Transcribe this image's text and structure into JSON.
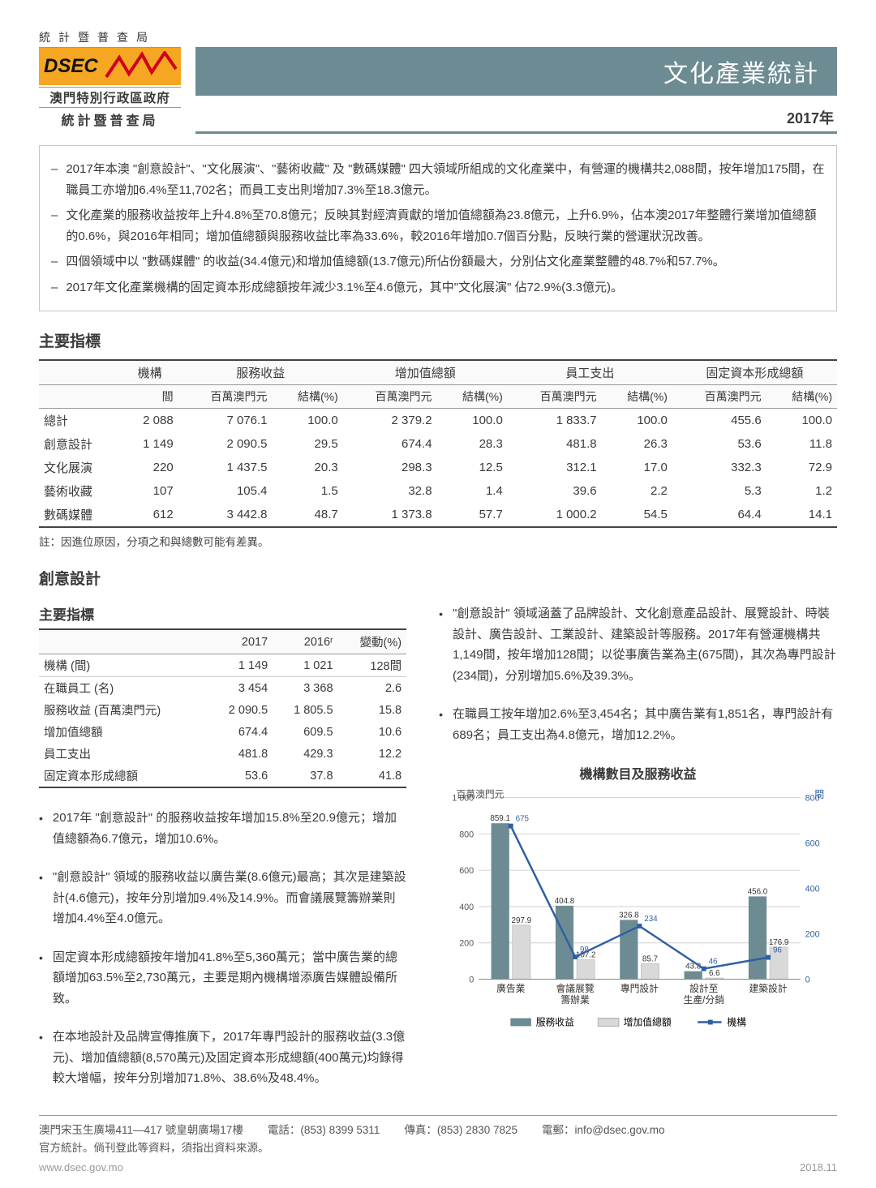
{
  "logo": {
    "top_text": "統計暨普查局",
    "brand": "DSEC",
    "sub1": "澳門特別行政區政府",
    "sub2": "統計暨普查局",
    "zigzag_color": "#d0021b"
  },
  "title_banner": "文化產業統計",
  "year_label": "2017年",
  "summary_bullets": [
    "2017年本澳 \"創意設計\"、\"文化展演\"、\"藝術收藏\" 及 \"數碼媒體\" 四大領域所組成的文化產業中，有營運的機構共2,088間，按年增加175間，在職員工亦增加6.4%至11,702名；而員工支出則增加7.3%至18.3億元。",
    "文化產業的服務收益按年上升4.8%至70.8億元；反映其對經濟貢獻的增加值總額為23.8億元，上升6.9%，佔本澳2017年整體行業增加值總額的0.6%，與2016年相同；增加值總額與服務收益比率為33.6%，較2016年增加0.7個百分點，反映行業的營運狀況改善。",
    "四個領域中以 \"數碼媒體\" 的收益(34.4億元)和增加值總額(13.7億元)所佔份額最大，分別佔文化產業整體的48.7%和57.7%。",
    "2017年文化產業機構的固定資本形成總額按年減少3.1%至4.6億元，其中\"文化展演\" 佔72.9%(3.3億元)。"
  ],
  "key_heading": "主要指標",
  "key_table": {
    "head1": [
      "",
      "機構",
      "服務收益",
      "增加值總額",
      "員工支出",
      "固定資本形成總額"
    ],
    "head2": [
      "",
      "間",
      "百萬澳門元",
      "結構(%)",
      "百萬澳門元",
      "結構(%)",
      "百萬澳門元",
      "結構(%)",
      "百萬澳門元",
      "結構(%)"
    ],
    "rows": [
      [
        "總計",
        "2 088",
        "7 076.1",
        "100.0",
        "2 379.2",
        "100.0",
        "1 833.7",
        "100.0",
        "455.6",
        "100.0"
      ],
      [
        "創意設計",
        "1 149",
        "2 090.5",
        "29.5",
        "674.4",
        "28.3",
        "481.8",
        "26.3",
        "53.6",
        "11.8"
      ],
      [
        "文化展演",
        "220",
        "1 437.5",
        "20.3",
        "298.3",
        "12.5",
        "312.1",
        "17.0",
        "332.3",
        "72.9"
      ],
      [
        "藝術收藏",
        "107",
        "105.4",
        "1.5",
        "32.8",
        "1.4",
        "39.6",
        "2.2",
        "5.3",
        "1.2"
      ],
      [
        "數碼媒體",
        "612",
        "3 442.8",
        "48.7",
        "1 373.8",
        "57.7",
        "1 000.2",
        "54.5",
        "64.4",
        "14.1"
      ]
    ],
    "note": "註：因進位原因，分項之和與總數可能有差異。"
  },
  "creative_heading": "創意設計",
  "creative_sub_heading": "主要指標",
  "creative_table": {
    "head": [
      "",
      "2017",
      "2016ʳ",
      "變動(%)"
    ],
    "rows": [
      [
        "機構 (間)",
        "1 149",
        "1 021",
        "128間"
      ],
      [
        "在職員工 (名)",
        "3 454",
        "3 368",
        "2.6"
      ],
      [
        "服務收益 (百萬澳門元)",
        "2 090.5",
        "1 805.5",
        "15.8"
      ],
      [
        "增加值總額",
        "674.4",
        "609.5",
        "10.6"
      ],
      [
        "員工支出",
        "481.8",
        "429.3",
        "12.2"
      ],
      [
        "固定資本形成總額",
        "53.6",
        "37.8",
        "41.8"
      ]
    ]
  },
  "creative_right_bullets": [
    "\"創意設計\" 領域涵蓋了品牌設計、文化創意產品設計、展覽設計、時裝設計、廣告設計、工業設計、建築設計等服務。2017年有營運機構共1,149間，按年增加128間；以從事廣告業為主(675間)，其次為專門設計(234間)，分別增加5.6%及39.3%。",
    "在職員工按年增加2.6%至3,454名；其中廣告業有1,851名，專門設計有689名；員工支出為4.8億元，增加12.2%。"
  ],
  "left_bullets": [
    "2017年 \"創意設計\" 的服務收益按年增加15.8%至20.9億元；增加值總額為6.7億元，增加10.6%。",
    "\"創意設計\" 領域的服務收益以廣告業(8.6億元)最高；其次是建築設計(4.6億元)，按年分別增加9.4%及14.9%。而會議展覽籌辦業則增加4.4%至4.0億元。",
    "固定資本形成總額按年增加41.8%至5,360萬元；當中廣告業的總額增加63.5%至2,730萬元，主要是期內機構增添廣告媒體設備所致。",
    "在本地設計及品牌宣傳推廣下，2017年專門設計的服務收益(3.3億元)、增加值總額(8,570萬元)及固定資本形成總額(400萬元)均錄得較大增幅，按年分別增加71.8%、38.6%及48.4%。"
  ],
  "chart": {
    "title": "機構數目及服務收益",
    "y_left_label": "百萬澳門元",
    "y_right_label": "間",
    "y_left_max": 1000,
    "y_left_step": 200,
    "y_right_max": 800,
    "y_right_step": 200,
    "categories": [
      "廣告業",
      "會議展覽\n籌辦業",
      "專門設計",
      "設計至\n生產/分銷",
      "建築設計"
    ],
    "series_service": [
      859.1,
      404.8,
      326.8,
      43.8,
      456.0
    ],
    "series_valueadd": [
      297.9,
      107.2,
      85.7,
      6.6,
      176.9
    ],
    "series_org": [
      675,
      98,
      234,
      46,
      96
    ],
    "colors": {
      "service": "#6d8b92",
      "valueadd": "#d9d9d9",
      "org_line": "#2e5fa3",
      "grid": "#d0d0d0",
      "axis": "#888",
      "label_text": "#333"
    },
    "legend": [
      "服務收益",
      "增加值總額",
      "機構"
    ]
  },
  "footer": {
    "address": "澳門宋玉生廣場411—417 號皇朝廣場17樓",
    "tel_label": "電話：",
    "tel": "(853) 8399 5311",
    "fax_label": "傳真：",
    "fax": "(853) 2830 7825",
    "email_label": "電郵：",
    "email": "info@dsec.gov.mo",
    "note": "官方統計。倘刊登此等資料，須指出資料來源。",
    "site": "www.dsec.gov.mo",
    "date": "2018.11"
  }
}
